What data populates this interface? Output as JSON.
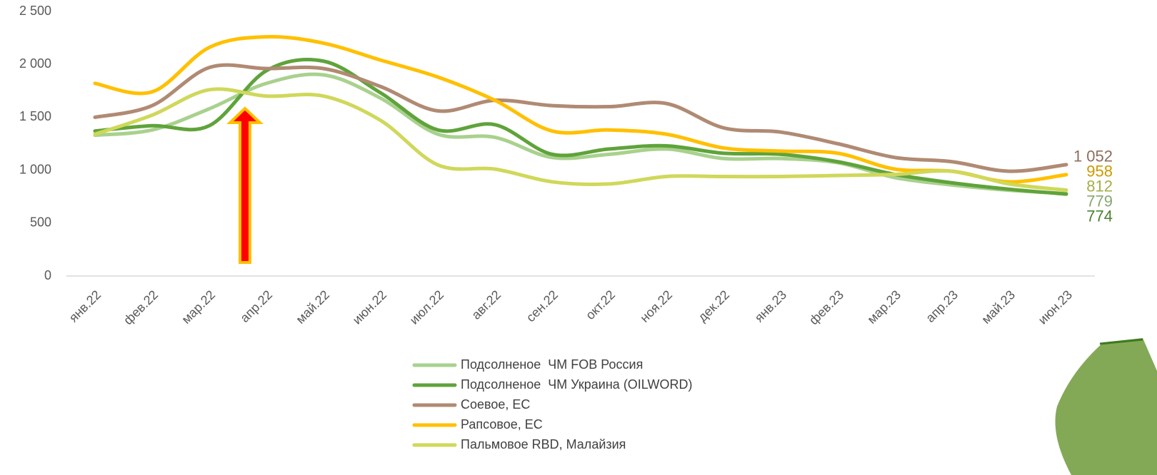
{
  "chart_data": {
    "type": "line",
    "categories": [
      "янв.22",
      "фев.22",
      "мар.22",
      "апр.22",
      "май.22",
      "июн.22",
      "июл.22",
      "авг.22",
      "сен.22",
      "окт.22",
      "ноя.22",
      "дек.22",
      "янв.23",
      "фев.23",
      "мар.23",
      "апр.23",
      "май.23",
      "июн.23"
    ],
    "series": [
      {
        "name": "Подсолненое  ЧМ FOB Россия",
        "color": "#a9d18e",
        "values": [
          1330,
          1380,
          1580,
          1820,
          1900,
          1680,
          1340,
          1310,
          1120,
          1150,
          1200,
          1110,
          1110,
          1070,
          930,
          860,
          810,
          779
        ],
        "value_labels": [
          null,
          null,
          null,
          null,
          null,
          null,
          null,
          null,
          null,
          null,
          null,
          null,
          null,
          null,
          null,
          null,
          null,
          "779"
        ]
      },
      {
        "name": "Подсолненое  ЧМ Украина (OILWORD)",
        "color": "#5fa33b",
        "values": [
          1370,
          1420,
          1420,
          1940,
          2030,
          1730,
          1380,
          1430,
          1150,
          1200,
          1230,
          1160,
          1150,
          1080,
          960,
          880,
          820,
          774
        ],
        "value_labels": [
          null,
          null,
          null,
          null,
          null,
          null,
          null,
          null,
          null,
          null,
          null,
          null,
          null,
          null,
          null,
          null,
          null,
          "774"
        ]
      },
      {
        "name": "Соевое, ЕС",
        "color": "#b08a73",
        "values": [
          1500,
          1610,
          1970,
          1960,
          1960,
          1790,
          1560,
          1660,
          1610,
          1600,
          1630,
          1400,
          1360,
          1250,
          1120,
          1080,
          990,
          1052
        ],
        "value_labels": [
          null,
          null,
          null,
          null,
          null,
          null,
          null,
          null,
          null,
          null,
          null,
          null,
          null,
          null,
          null,
          null,
          null,
          "1 052"
        ]
      },
      {
        "name": "Рапсовое, ЕС",
        "color": "#ffc000",
        "values": [
          1820,
          1740,
          2160,
          2260,
          2200,
          2040,
          1880,
          1660,
          1370,
          1380,
          1340,
          1210,
          1180,
          1160,
          1010,
          990,
          890,
          958
        ],
        "value_labels": [
          null,
          null,
          null,
          null,
          null,
          null,
          null,
          null,
          null,
          null,
          null,
          null,
          null,
          null,
          null,
          null,
          null,
          "958"
        ]
      },
      {
        "name": "Пальмовое RBD, Малайзия",
        "color": "#cfd85a",
        "values": [
          1340,
          1520,
          1760,
          1700,
          1700,
          1470,
          1050,
          1010,
          890,
          870,
          940,
          940,
          940,
          950,
          960,
          990,
          870,
          812
        ],
        "value_labels": [
          null,
          null,
          null,
          null,
          null,
          null,
          null,
          null,
          null,
          null,
          null,
          null,
          null,
          null,
          null,
          null,
          null,
          "812"
        ]
      }
    ],
    "ylim": [
      0,
      2500
    ],
    "yticks": [
      0,
      500,
      {
        "value": 1000,
        "label": "1 000"
      },
      {
        "value": 1500,
        "label": "1 500"
      },
      {
        "value": 2000,
        "label": "2 000"
      },
      {
        "value": 2500,
        "label": "2 500"
      }
    ],
    "grid": false
  }
}
